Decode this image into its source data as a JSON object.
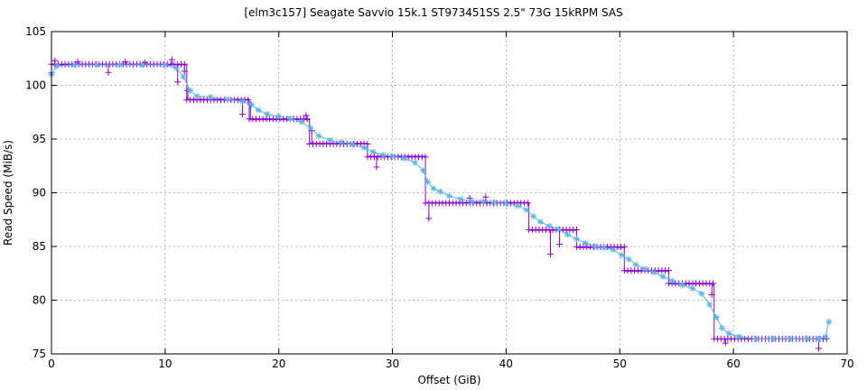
{
  "chart_data": {
    "type": "scatter",
    "title": "[elm3c157] Seagate Savvio 15k.1 ST973451SS 2.5\" 73G 15kRPM SAS",
    "xlabel": "Offset (GiB)",
    "ylabel": "Read Speed (MiB/s)",
    "xlim": [
      0,
      70
    ],
    "ylim": [
      75,
      105
    ],
    "xticks": [
      0,
      10,
      20,
      30,
      40,
      50,
      60,
      70
    ],
    "yticks": [
      75,
      80,
      85,
      90,
      95,
      100,
      105
    ],
    "grid": true,
    "legend": "none",
    "colors": {
      "raw": "#9400d3",
      "smooth": "#56b4e9"
    },
    "raw_steps": [
      {
        "x0": 0.0,
        "x1": 11.9,
        "y": 101.9
      },
      {
        "x0": 11.9,
        "x1": 17.4,
        "y": 98.7
      },
      {
        "x0": 17.4,
        "x1": 22.7,
        "y": 96.8
      },
      {
        "x0": 22.7,
        "x1": 27.8,
        "y": 94.6
      },
      {
        "x0": 27.8,
        "x1": 32.9,
        "y": 93.4
      },
      {
        "x0": 32.9,
        "x1": 42.0,
        "y": 89.1
      },
      {
        "x0": 42.0,
        "x1": 46.2,
        "y": 86.5
      },
      {
        "x0": 46.2,
        "x1": 50.4,
        "y": 84.9
      },
      {
        "x0": 50.4,
        "x1": 54.3,
        "y": 82.7
      },
      {
        "x0": 54.3,
        "x1": 58.3,
        "y": 81.5
      },
      {
        "x0": 58.3,
        "x1": 68.3,
        "y": 76.4
      }
    ],
    "raw_outliers": [
      {
        "x": 0.0,
        "y": 101.2
      },
      {
        "x": 0.3,
        "y": 102.3
      },
      {
        "x": 2.3,
        "y": 102.2
      },
      {
        "x": 5.0,
        "y": 101.2
      },
      {
        "x": 6.5,
        "y": 102.2
      },
      {
        "x": 8.2,
        "y": 102.1
      },
      {
        "x": 10.6,
        "y": 102.4
      },
      {
        "x": 11.1,
        "y": 100.3
      },
      {
        "x": 11.7,
        "y": 101.3
      },
      {
        "x": 12.0,
        "y": 99.5
      },
      {
        "x": 16.8,
        "y": 97.3
      },
      {
        "x": 17.5,
        "y": 98.2
      },
      {
        "x": 22.4,
        "y": 97.2
      },
      {
        "x": 22.9,
        "y": 95.8
      },
      {
        "x": 28.6,
        "y": 92.4
      },
      {
        "x": 33.2,
        "y": 87.6
      },
      {
        "x": 36.8,
        "y": 89.5
      },
      {
        "x": 38.2,
        "y": 89.6
      },
      {
        "x": 43.9,
        "y": 84.3
      },
      {
        "x": 44.7,
        "y": 85.2
      },
      {
        "x": 58.1,
        "y": 80.5
      },
      {
        "x": 59.3,
        "y": 76.0
      },
      {
        "x": 67.5,
        "y": 75.5
      }
    ],
    "smooth_points": [
      {
        "x": 0,
        "y": 101.0
      },
      {
        "x": 0.5,
        "y": 101.8
      },
      {
        "x": 2,
        "y": 101.9
      },
      {
        "x": 4,
        "y": 101.9
      },
      {
        "x": 6,
        "y": 101.9
      },
      {
        "x": 8,
        "y": 101.9
      },
      {
        "x": 10,
        "y": 101.9
      },
      {
        "x": 11,
        "y": 101.6
      },
      {
        "x": 11.6,
        "y": 100.8
      },
      {
        "x": 12.2,
        "y": 99.5
      },
      {
        "x": 12.8,
        "y": 99.0
      },
      {
        "x": 14,
        "y": 98.9
      },
      {
        "x": 15.5,
        "y": 98.7
      },
      {
        "x": 16.8,
        "y": 98.5
      },
      {
        "x": 17.6,
        "y": 98.2
      },
      {
        "x": 18.2,
        "y": 97.7
      },
      {
        "x": 19,
        "y": 97.3
      },
      {
        "x": 20,
        "y": 97.1
      },
      {
        "x": 21,
        "y": 96.9
      },
      {
        "x": 22,
        "y": 96.6
      },
      {
        "x": 22.8,
        "y": 96.0
      },
      {
        "x": 23.5,
        "y": 95.3
      },
      {
        "x": 24.5,
        "y": 94.9
      },
      {
        "x": 25.5,
        "y": 94.7
      },
      {
        "x": 26.5,
        "y": 94.5
      },
      {
        "x": 27.5,
        "y": 94.2
      },
      {
        "x": 28.3,
        "y": 93.8
      },
      {
        "x": 29.2,
        "y": 93.5
      },
      {
        "x": 30,
        "y": 93.4
      },
      {
        "x": 31,
        "y": 93.2
      },
      {
        "x": 32,
        "y": 92.8
      },
      {
        "x": 32.7,
        "y": 92.1
      },
      {
        "x": 33.1,
        "y": 91.0
      },
      {
        "x": 33.6,
        "y": 90.4
      },
      {
        "x": 34.2,
        "y": 90.1
      },
      {
        "x": 35,
        "y": 89.7
      },
      {
        "x": 36,
        "y": 89.4
      },
      {
        "x": 37,
        "y": 89.2
      },
      {
        "x": 38,
        "y": 89.2
      },
      {
        "x": 39,
        "y": 89.1
      },
      {
        "x": 40,
        "y": 89.0
      },
      {
        "x": 41,
        "y": 88.8
      },
      {
        "x": 41.8,
        "y": 88.4
      },
      {
        "x": 42.4,
        "y": 87.8
      },
      {
        "x": 43,
        "y": 87.3
      },
      {
        "x": 43.8,
        "y": 86.9
      },
      {
        "x": 44.6,
        "y": 86.6
      },
      {
        "x": 45.4,
        "y": 86.1
      },
      {
        "x": 46.2,
        "y": 85.7
      },
      {
        "x": 47,
        "y": 85.3
      },
      {
        "x": 47.8,
        "y": 85.0
      },
      {
        "x": 48.6,
        "y": 84.9
      },
      {
        "x": 49.4,
        "y": 84.7
      },
      {
        "x": 50.2,
        "y": 84.2
      },
      {
        "x": 50.8,
        "y": 83.8
      },
      {
        "x": 51.4,
        "y": 83.3
      },
      {
        "x": 52.2,
        "y": 82.9
      },
      {
        "x": 53,
        "y": 82.6
      },
      {
        "x": 53.8,
        "y": 82.2
      },
      {
        "x": 54.6,
        "y": 81.8
      },
      {
        "x": 55.5,
        "y": 81.4
      },
      {
        "x": 56.4,
        "y": 81.1
      },
      {
        "x": 57.2,
        "y": 80.6
      },
      {
        "x": 57.9,
        "y": 79.6
      },
      {
        "x": 58.5,
        "y": 78.4
      },
      {
        "x": 59.0,
        "y": 77.4
      },
      {
        "x": 59.6,
        "y": 76.9
      },
      {
        "x": 60.5,
        "y": 76.6
      },
      {
        "x": 62,
        "y": 76.4
      },
      {
        "x": 63.5,
        "y": 76.4
      },
      {
        "x": 65,
        "y": 76.4
      },
      {
        "x": 66.5,
        "y": 76.4
      },
      {
        "x": 67.5,
        "y": 76.4
      },
      {
        "x": 68.1,
        "y": 76.6
      },
      {
        "x": 68.4,
        "y": 78.0
      }
    ]
  }
}
